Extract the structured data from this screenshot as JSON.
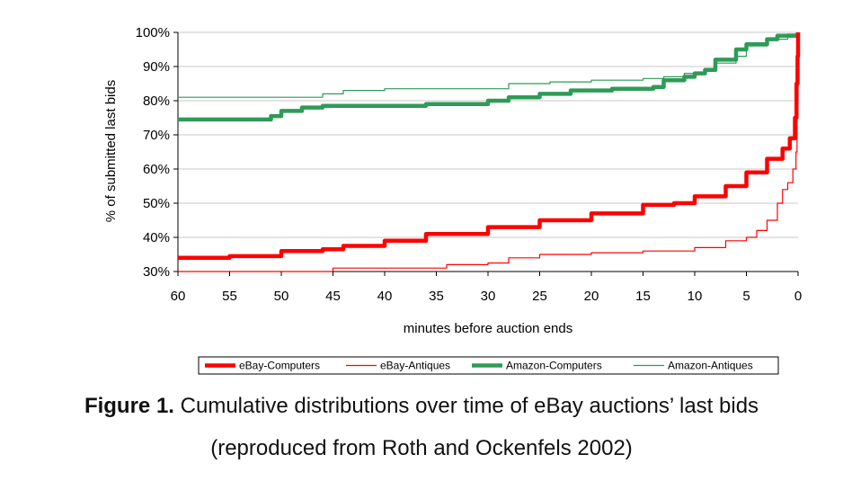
{
  "caption": {
    "label": "Figure 1.",
    "text": "Cumulative distributions over time of eBay auctions’ last bids",
    "line2": "(reproduced from Roth and Ockenfels 2002)"
  },
  "chart_data": {
    "type": "line",
    "title": "",
    "xlabel": "minutes before auction ends",
    "ylabel": "% of submitted last bids",
    "xlim": [
      60,
      0
    ],
    "ylim": [
      30,
      100
    ],
    "x_reversed": true,
    "grid": "horizontal",
    "legend_position": "bottom",
    "x_ticks": [
      60,
      55,
      50,
      45,
      40,
      35,
      30,
      25,
      20,
      15,
      10,
      5,
      0
    ],
    "x_tick_labels": [
      "60",
      "55",
      "50",
      "45",
      "40",
      "35",
      "30",
      "25",
      "20",
      "15",
      "10",
      "5",
      "0"
    ],
    "y_ticks": [
      30,
      40,
      50,
      60,
      70,
      80,
      90,
      100
    ],
    "y_tick_labels": [
      "30%",
      "40%",
      "50%",
      "60%",
      "70%",
      "80%",
      "90%",
      "100%"
    ],
    "series": [
      {
        "name": "eBay-Computers",
        "color": "#ff0000",
        "style": "thick",
        "points": [
          [
            60,
            34
          ],
          [
            55,
            34.5
          ],
          [
            50,
            36
          ],
          [
            46,
            36.5
          ],
          [
            44,
            37.5
          ],
          [
            40,
            39
          ],
          [
            36,
            41
          ],
          [
            30,
            43
          ],
          [
            25,
            45
          ],
          [
            20,
            47
          ],
          [
            15,
            49.5
          ],
          [
            12,
            50
          ],
          [
            10,
            52
          ],
          [
            7,
            55
          ],
          [
            5,
            59
          ],
          [
            3,
            63
          ],
          [
            1.5,
            66
          ],
          [
            0.8,
            69
          ],
          [
            0.3,
            75
          ],
          [
            0.15,
            85
          ],
          [
            0.05,
            93
          ],
          [
            0,
            100
          ]
        ]
      },
      {
        "name": "eBay-Antiques",
        "color": "#ff0000",
        "style": "thin",
        "points": [
          [
            60,
            30
          ],
          [
            47,
            30
          ],
          [
            45,
            31
          ],
          [
            36,
            31
          ],
          [
            34,
            32
          ],
          [
            30,
            32.5
          ],
          [
            28,
            34
          ],
          [
            25,
            35
          ],
          [
            20,
            35.5
          ],
          [
            15,
            36
          ],
          [
            10,
            37
          ],
          [
            7,
            39
          ],
          [
            5,
            40
          ],
          [
            4,
            42
          ],
          [
            3,
            45
          ],
          [
            2,
            50
          ],
          [
            1.5,
            54
          ],
          [
            1,
            56
          ],
          [
            0.5,
            60
          ],
          [
            0.2,
            65
          ],
          [
            0.1,
            80
          ],
          [
            0,
            100
          ]
        ]
      },
      {
        "name": "Amazon-Computers",
        "color": "#2e9b57",
        "style": "thick",
        "points": [
          [
            60,
            74.5
          ],
          [
            52,
            74.5
          ],
          [
            51,
            75.5
          ],
          [
            50,
            77
          ],
          [
            48,
            78
          ],
          [
            46,
            78.5
          ],
          [
            40,
            78.5
          ],
          [
            36,
            79
          ],
          [
            30,
            80
          ],
          [
            28,
            81
          ],
          [
            25,
            82
          ],
          [
            22,
            83
          ],
          [
            18,
            83.5
          ],
          [
            14,
            84
          ],
          [
            13,
            86
          ],
          [
            11,
            87
          ],
          [
            10,
            88
          ],
          [
            9,
            89
          ],
          [
            8,
            92
          ],
          [
            6,
            95
          ],
          [
            5,
            96.5
          ],
          [
            3,
            98
          ],
          [
            2,
            99
          ],
          [
            0,
            100
          ]
        ]
      },
      {
        "name": "Amazon-Antiques",
        "color": "#2e9b57",
        "style": "thin",
        "points": [
          [
            60,
            81
          ],
          [
            47,
            81
          ],
          [
            46,
            82
          ],
          [
            44,
            83
          ],
          [
            40,
            83.5
          ],
          [
            30,
            83.5
          ],
          [
            28,
            85
          ],
          [
            24,
            85.5
          ],
          [
            20,
            86
          ],
          [
            15,
            86.5
          ],
          [
            13,
            87
          ],
          [
            11,
            88
          ],
          [
            9,
            89
          ],
          [
            8,
            91
          ],
          [
            6,
            93
          ],
          [
            5,
            96
          ],
          [
            3,
            98
          ],
          [
            1,
            99.5
          ],
          [
            0,
            100
          ]
        ]
      }
    ]
  }
}
